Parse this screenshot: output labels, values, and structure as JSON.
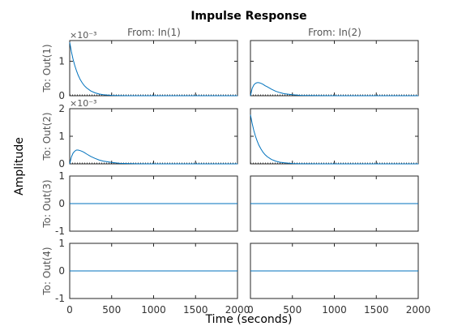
{
  "chart_data": {
    "type": "line",
    "title": "Impulse Response",
    "xlabel": "Time (seconds)",
    "ylabel": "Amplitude",
    "grid": false,
    "line_color": "#0072bd",
    "frame_color": "#262626",
    "columns": [
      "From: In(1)",
      "From: In(2)"
    ],
    "rows": [
      "To: Out(1)",
      "To: Out(2)",
      "To: Out(3)",
      "To: Out(4)"
    ],
    "xlim": [
      0,
      2000
    ],
    "xticks": [
      0,
      500,
      1000,
      1500,
      2000
    ],
    "x": [
      0,
      20,
      40,
      60,
      80,
      100,
      125,
      150,
      175,
      200,
      250,
      300,
      350,
      400,
      500,
      600,
      700,
      800,
      1000,
      1500,
      2000
    ],
    "row_axes": [
      {
        "ylim": [
          0,
          0.0016
        ],
        "yticks": [
          0,
          0.001
        ],
        "tick_labels": [
          "0",
          "1"
        ],
        "exponent_label": "×10⁻³"
      },
      {
        "ylim": [
          0,
          0.002
        ],
        "yticks": [
          0,
          0.001,
          0.002
        ],
        "tick_labels": [
          "0",
          "1",
          "2"
        ],
        "exponent_label": "×10⁻³"
      },
      {
        "ylim": [
          -1,
          1
        ],
        "yticks": [
          -1,
          0,
          1
        ],
        "tick_labels": [
          "-1",
          "0",
          "1"
        ],
        "exponent_label": ""
      },
      {
        "ylim": [
          -1,
          1
        ],
        "yticks": [
          -1,
          0,
          1
        ],
        "tick_labels": [
          "-1",
          "0",
          "1"
        ],
        "exponent_label": ""
      }
    ],
    "panels": [
      [
        {
          "values": [
            0.00155,
            0.00128,
            0.00106,
            0.00088,
            0.00073,
            0.0006,
            0.00047,
            0.00037,
            0.00029,
            0.00023,
            0.00014,
            8.5e-05,
            5e-05,
            3e-05,
            1e-05,
            4e-06,
            1e-06,
            0,
            0,
            0,
            0
          ]
        },
        {
          "values": [
            0,
            0.00021,
            0.00031,
            0.00036,
            0.00038,
            0.00038,
            0.00036,
            0.00033,
            0.00029,
            0.00026,
            0.00019,
            0.00013,
            9e-05,
            6e-05,
            3e-05,
            1e-05,
            5e-06,
            2e-06,
            0,
            0,
            0
          ]
        }
      ],
      [
        {
          "values": [
            0,
            0.00025,
            0.00039,
            0.00046,
            0.0005,
            0.0005,
            0.00048,
            0.00045,
            0.00041,
            0.00036,
            0.00027,
            0.0002,
            0.00014,
            0.0001,
            5e-05,
            2e-05,
            1e-05,
            5e-06,
            0,
            0,
            0
          ]
        },
        {
          "values": [
            0.00178,
            0.00147,
            0.00121,
            0.001,
            0.00083,
            0.00068,
            0.00054,
            0.00042,
            0.00033,
            0.00026,
            0.00016,
            0.0001,
            6e-05,
            4e-05,
            1e-05,
            5e-06,
            2e-06,
            0,
            0,
            0,
            0
          ]
        }
      ],
      [
        {
          "values": [
            0,
            0,
            0,
            0,
            0,
            0,
            0,
            0,
            0,
            0,
            0,
            0,
            0,
            0,
            0,
            0,
            0,
            0,
            0,
            0,
            0
          ]
        },
        {
          "values": [
            0,
            0,
            0,
            0,
            0,
            0,
            0,
            0,
            0,
            0,
            0,
            0,
            0,
            0,
            0,
            0,
            0,
            0,
            0,
            0,
            0
          ]
        }
      ],
      [
        {
          "values": [
            0,
            0,
            0,
            0,
            0,
            0,
            0,
            0,
            0,
            0,
            0,
            0,
            0,
            0,
            0,
            0,
            0,
            0,
            0,
            0,
            0
          ]
        },
        {
          "values": [
            0,
            0,
            0,
            0,
            0,
            0,
            0,
            0,
            0,
            0,
            0,
            0,
            0,
            0,
            0,
            0,
            0,
            0,
            0,
            0,
            0
          ]
        }
      ]
    ]
  }
}
